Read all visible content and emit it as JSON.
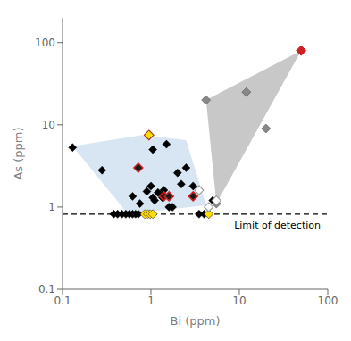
{
  "chart_data": {
    "type": "scatter",
    "xlabel": "Bi (ppm)",
    "ylabel": "As (ppm)",
    "log": true,
    "grid": false,
    "xlim": [
      0.1,
      100
    ],
    "ylim": [
      0.1,
      200
    ],
    "xticks": [
      0.1,
      1,
      10,
      100
    ],
    "yticks": [
      0.1,
      1,
      10,
      100
    ],
    "polygons": [
      {
        "color": "#aaaaaa",
        "points": [
          [
            4.2,
            20
          ],
          [
            50,
            80
          ],
          [
            5.5,
            1.1
          ]
        ]
      },
      {
        "color": "#b8cfe8",
        "points": [
          [
            0.13,
            5.5
          ],
          [
            0.8,
            7.5
          ],
          [
            2.5,
            6.5
          ],
          [
            4.2,
            1.05
          ],
          [
            0.55,
            0.82
          ]
        ]
      }
    ],
    "series": [
      {
        "color": "#000000",
        "marker": "diamond",
        "points": [
          [
            0.13,
            5.3
          ],
          [
            0.28,
            2.8
          ],
          [
            0.38,
            0.82
          ],
          [
            0.42,
            0.82
          ],
          [
            0.47,
            0.82
          ],
          [
            0.52,
            0.82
          ],
          [
            0.57,
            0.82
          ],
          [
            0.62,
            0.82
          ],
          [
            0.67,
            0.82
          ],
          [
            0.72,
            0.82
          ],
          [
            0.62,
            1.35
          ],
          [
            0.75,
            1.1
          ],
          [
            0.9,
            1.55
          ],
          [
            1.0,
            1.8
          ],
          [
            1.05,
            1.3
          ],
          [
            1.1,
            1.2
          ],
          [
            1.2,
            1.5
          ],
          [
            1.3,
            1.4
          ],
          [
            1.35,
            1.3
          ],
          [
            1.4,
            1.6
          ],
          [
            1.5,
            5.8
          ],
          [
            1.6,
            1.0
          ],
          [
            1.75,
            1.0
          ],
          [
            2.0,
            2.6
          ],
          [
            2.2,
            1.9
          ],
          [
            2.5,
            3.0
          ],
          [
            3.0,
            1.8
          ],
          [
            3.5,
            0.82
          ],
          [
            4.0,
            0.82
          ],
          [
            4.5,
            0.82
          ],
          [
            1.05,
            5.0
          ],
          [
            5.0,
            1.2
          ]
        ]
      },
      {
        "color": "#1a1a1a",
        "marker": "diamond",
        "points": [
          [
            0.72,
            3.0
          ],
          [
            0.95,
            7.5
          ],
          [
            1.4,
            1.35
          ],
          [
            1.6,
            1.35
          ],
          [
            3.0,
            1.35
          ]
        ]
      },
      {
        "color": "#cc2222",
        "marker": "diamond",
        "points": [
          [
            50,
            80
          ]
        ]
      },
      {
        "color": "#ffdd00",
        "marker": "diamond",
        "points": [
          [
            0.85,
            0.82
          ],
          [
            0.92,
            0.82
          ],
          [
            0.98,
            0.82
          ],
          [
            1.05,
            0.82
          ],
          [
            4.5,
            0.82
          ],
          [
            0.95,
            7.5
          ]
        ]
      },
      {
        "color": "#888888",
        "marker": "diamond",
        "points": [
          [
            4.2,
            20
          ],
          [
            5.5,
            1.1
          ],
          [
            12,
            25
          ],
          [
            20,
            9.0
          ]
        ]
      },
      {
        "color": "#ffffff",
        "marker": "diamond",
        "points": [
          [
            3.5,
            1.6
          ],
          [
            4.5,
            1.0
          ],
          [
            5.5,
            1.2
          ]
        ]
      }
    ],
    "hlines": [
      {
        "y": 0.82,
        "line_style": "dashed",
        "label": "Limit of detection"
      }
    ]
  }
}
